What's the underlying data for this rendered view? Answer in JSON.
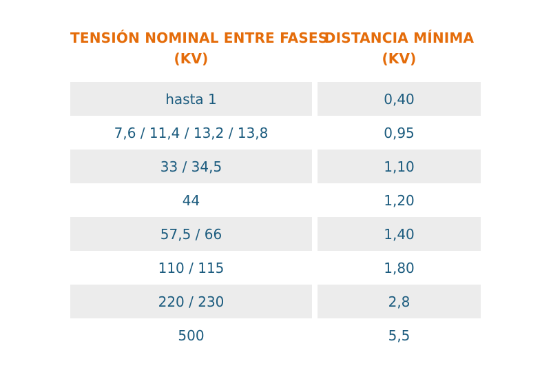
{
  "table": {
    "headers": [
      {
        "line1": "TENSIÓN NOMINAL ENTRE FASES",
        "line2": "(KV)"
      },
      {
        "line1": "DISTANCIA MÍNIMA",
        "line2": "(KV)"
      }
    ],
    "rows": [
      {
        "tension": "hasta 1",
        "distancia": "0,40"
      },
      {
        "tension": "7,6 / 11,4 / 13,2 / 13,8",
        "distancia": "0,95"
      },
      {
        "tension": "33 / 34,5",
        "distancia": "1,10"
      },
      {
        "tension": "44",
        "distancia": "1,20"
      },
      {
        "tension": "57,5 / 66",
        "distancia": "1,40"
      },
      {
        "tension": "110 / 115",
        "distancia": "1,80"
      },
      {
        "tension": "220 / 230",
        "distancia": "2,8"
      },
      {
        "tension": "500",
        "distancia": "5,5"
      }
    ],
    "colors": {
      "header": "#e46c0a",
      "cell_text": "#1b5b7e",
      "stripe": "#ececec"
    }
  }
}
